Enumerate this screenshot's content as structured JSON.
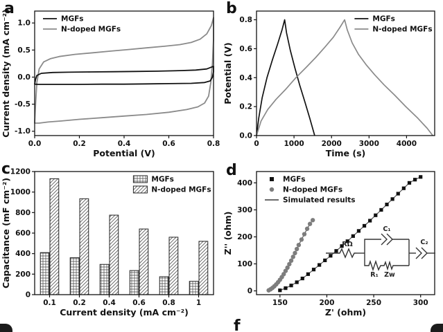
{
  "figure": {
    "panel_labels": [
      "a",
      "b",
      "c",
      "d"
    ],
    "cropped_label": "f",
    "colors": {
      "series_black": "#111111",
      "series_gray": "#8a8a8a",
      "sim_line": "#555555"
    }
  },
  "circuit": {
    "r_ohm": "RΩ",
    "c1": "C₁",
    "c2": "C₂",
    "r1": "R₁",
    "zw": "Zw"
  },
  "chart_data": [
    {
      "id": "a",
      "name": "cv-chart",
      "type": "line",
      "xlabel": "Potential (V)",
      "ylabel": "Current density (mA cm⁻²)",
      "xlim": [
        0,
        0.8
      ],
      "ylim": [
        -1.08,
        1.22
      ],
      "xticks": [
        0.0,
        0.2,
        0.4,
        0.6,
        0.8
      ],
      "xtick_labels": [
        "0.0",
        "0.2",
        "0.4",
        "0.6",
        "0.8"
      ],
      "yticks": [
        -1.0,
        -0.5,
        0.0,
        0.5,
        1.0
      ],
      "ytick_labels": [
        "-1.0",
        "-0.5",
        "0.0",
        "0.5",
        "1.0"
      ],
      "legend": {
        "position": "top-left",
        "items": [
          {
            "label": "MGFs",
            "swatch": "line",
            "color": "#111111"
          },
          {
            "label": "N-doped MGFs",
            "swatch": "line",
            "color": "#8a8a8a"
          }
        ]
      },
      "series": [
        {
          "name": "N-doped MGFs",
          "type": "line",
          "closed": true,
          "color": "#8a8a8a",
          "width": 1.8,
          "points": [
            [
              0,
              -0.85
            ],
            [
              0.004,
              -0.5
            ],
            [
              0.01,
              -0.1
            ],
            [
              0.02,
              0.15
            ],
            [
              0.04,
              0.28
            ],
            [
              0.07,
              0.34
            ],
            [
              0.11,
              0.38
            ],
            [
              0.18,
              0.42
            ],
            [
              0.26,
              0.45
            ],
            [
              0.34,
              0.48
            ],
            [
              0.42,
              0.51
            ],
            [
              0.5,
              0.54
            ],
            [
              0.58,
              0.57
            ],
            [
              0.65,
              0.6
            ],
            [
              0.7,
              0.64
            ],
            [
              0.74,
              0.7
            ],
            [
              0.77,
              0.8
            ],
            [
              0.79,
              0.95
            ],
            [
              0.8,
              1.1
            ],
            [
              0.8,
              0.7
            ],
            [
              0.795,
              0.25
            ],
            [
              0.788,
              -0.1
            ],
            [
              0.778,
              -0.35
            ],
            [
              0.76,
              -0.48
            ],
            [
              0.73,
              -0.55
            ],
            [
              0.68,
              -0.6
            ],
            [
              0.6,
              -0.65
            ],
            [
              0.5,
              -0.69
            ],
            [
              0.4,
              -0.72
            ],
            [
              0.3,
              -0.75
            ],
            [
              0.2,
              -0.78
            ],
            [
              0.12,
              -0.81
            ],
            [
              0.06,
              -0.83
            ],
            [
              0.02,
              -0.85
            ]
          ]
        },
        {
          "name": "MGFs",
          "type": "line",
          "closed": true,
          "color": "#111111",
          "width": 1.8,
          "points": [
            [
              0,
              -0.13
            ],
            [
              0.004,
              -0.04
            ],
            [
              0.01,
              0.03
            ],
            [
              0.03,
              0.07
            ],
            [
              0.08,
              0.085
            ],
            [
              0.15,
              0.09
            ],
            [
              0.25,
              0.095
            ],
            [
              0.35,
              0.1
            ],
            [
              0.45,
              0.105
            ],
            [
              0.55,
              0.11
            ],
            [
              0.65,
              0.12
            ],
            [
              0.72,
              0.13
            ],
            [
              0.77,
              0.15
            ],
            [
              0.8,
              0.2
            ],
            [
              0.8,
              0.1
            ],
            [
              0.795,
              0.0
            ],
            [
              0.785,
              -0.07
            ],
            [
              0.76,
              -0.1
            ],
            [
              0.7,
              -0.115
            ],
            [
              0.6,
              -0.12
            ],
            [
              0.5,
              -0.125
            ],
            [
              0.4,
              -0.13
            ],
            [
              0.3,
              -0.13
            ],
            [
              0.2,
              -0.135
            ],
            [
              0.12,
              -0.135
            ],
            [
              0.05,
              -0.135
            ],
            [
              0.015,
              -0.135
            ]
          ]
        }
      ]
    },
    {
      "id": "b",
      "name": "gcd-chart",
      "type": "line",
      "xlabel": "Time (s)",
      "ylabel": "Potential (V)",
      "xlim": [
        0,
        4750
      ],
      "ylim": [
        0,
        0.86
      ],
      "xticks": [
        0,
        1000,
        2000,
        3000,
        4000
      ],
      "xtick_labels": [
        "0",
        "1000",
        "2000",
        "3000",
        "4000"
      ],
      "yticks": [
        0.0,
        0.2,
        0.4,
        0.6,
        0.8
      ],
      "ytick_labels": [
        "0.0",
        "0.2",
        "0.4",
        "0.6",
        "0.8"
      ],
      "legend": {
        "position": "top-right",
        "items": [
          {
            "label": "MGFs",
            "swatch": "line",
            "color": "#111111"
          },
          {
            "label": "N-doped MGFs",
            "swatch": "line",
            "color": "#8a8a8a"
          }
        ]
      },
      "series": [
        {
          "name": "MGFs",
          "type": "line",
          "color": "#111111",
          "width": 1.7,
          "points": [
            [
              0,
              0
            ],
            [
              60,
              0.12
            ],
            [
              150,
              0.26
            ],
            [
              280,
              0.4
            ],
            [
              420,
              0.52
            ],
            [
              560,
              0.63
            ],
            [
              680,
              0.73
            ],
            [
              750,
              0.8
            ],
            [
              800,
              0.71
            ],
            [
              900,
              0.59
            ],
            [
              1020,
              0.47
            ],
            [
              1150,
              0.35
            ],
            [
              1280,
              0.24
            ],
            [
              1420,
              0.12
            ],
            [
              1550,
              0
            ]
          ]
        },
        {
          "name": "N-doped MGFs",
          "type": "line",
          "color": "#8a8a8a",
          "width": 1.7,
          "points": [
            [
              0,
              0
            ],
            [
              120,
              0.1
            ],
            [
              300,
              0.18
            ],
            [
              520,
              0.25
            ],
            [
              780,
              0.32
            ],
            [
              1050,
              0.4
            ],
            [
              1320,
              0.47
            ],
            [
              1580,
              0.54
            ],
            [
              1820,
              0.61
            ],
            [
              2050,
              0.68
            ],
            [
              2230,
              0.75
            ],
            [
              2350,
              0.8
            ],
            [
              2420,
              0.73
            ],
            [
              2550,
              0.64
            ],
            [
              2720,
              0.56
            ],
            [
              2920,
              0.49
            ],
            [
              3150,
              0.42
            ],
            [
              3400,
              0.35
            ],
            [
              3680,
              0.28
            ],
            [
              3980,
              0.2
            ],
            [
              4300,
              0.12
            ],
            [
              4550,
              0.05
            ],
            [
              4700,
              0
            ]
          ]
        }
      ]
    },
    {
      "id": "c",
      "name": "capacitance-bar-chart",
      "type": "bar",
      "xlabel": "Current density (mA cm⁻²)",
      "ylabel": "Capacitance (mF cm⁻²)",
      "categories": [
        "0.1",
        "0.2",
        "0.4",
        "0.6",
        "0.8",
        "1"
      ],
      "ylim": [
        0,
        1200
      ],
      "yticks": [
        0,
        200,
        400,
        600,
        800,
        1000,
        1200
      ],
      "ytick_labels": [
        "0",
        "200",
        "400",
        "600",
        "800",
        "1000",
        "1200"
      ],
      "legend": {
        "position": "top-right",
        "items": [
          {
            "label": "MGFs",
            "swatch": "rect",
            "hatch": "grid",
            "color": "#444444"
          },
          {
            "label": "N-doped MGFs",
            "swatch": "rect",
            "hatch": "diag",
            "color": "#666666"
          }
        ]
      },
      "series": [
        {
          "name": "MGFs",
          "hatch": "grid",
          "values": [
            410,
            360,
            295,
            235,
            175,
            130
          ]
        },
        {
          "name": "N-doped MGFs",
          "hatch": "diag",
          "values": [
            1130,
            935,
            775,
            640,
            560,
            520
          ]
        }
      ]
    },
    {
      "id": "d",
      "name": "nyquist-chart",
      "type": "scatter",
      "xlabel": "Z' (ohm)",
      "ylabel": "Z'' (ohm)",
      "xlim": [
        125,
        315
      ],
      "ylim": [
        -14,
        442
      ],
      "xticks": [
        150,
        200,
        250,
        300
      ],
      "xtick_labels": [
        "150",
        "200",
        "250",
        "300"
      ],
      "yticks": [
        0,
        100,
        200,
        300,
        400
      ],
      "ytick_labels": [
        "0",
        "100",
        "200",
        "300",
        "400"
      ],
      "legend": {
        "position": "top-left",
        "items": [
          {
            "label": "MGFs",
            "swatch": "square",
            "color": "#111111"
          },
          {
            "label": "N-doped MGFs",
            "swatch": "circle",
            "color": "#7d7d7d"
          },
          {
            "label": "Simulated results",
            "swatch": "line",
            "color": "#555555"
          }
        ]
      },
      "series": [
        {
          "name": "MGFs",
          "type": "scatter",
          "marker": "square",
          "color": "#111111",
          "sim_line": true,
          "points": [
            [
              150,
              2
            ],
            [
              156,
              10
            ],
            [
              162,
              20
            ],
            [
              168,
              32
            ],
            [
              174,
              46
            ],
            [
              180,
              62
            ],
            [
              186,
              79
            ],
            [
              192,
              96
            ],
            [
              198,
              113
            ],
            [
              204,
              130
            ],
            [
              210,
              148
            ],
            [
              216,
              166
            ],
            [
              222,
              184
            ],
            [
              228,
              203
            ],
            [
              234,
              222
            ],
            [
              240,
              241
            ],
            [
              246,
              260
            ],
            [
              252,
              280
            ],
            [
              258,
              300
            ],
            [
              264,
              320
            ],
            [
              270,
              340
            ],
            [
              276,
              360
            ],
            [
              282,
              380
            ],
            [
              288,
              400
            ],
            [
              294,
              412
            ],
            [
              300,
              422
            ]
          ]
        },
        {
          "name": "N-doped MGFs",
          "type": "scatter",
          "marker": "circle",
          "color": "#7d7d7d",
          "sim_line": true,
          "points": [
            [
              138,
              2
            ],
            [
              140,
              6
            ],
            [
              142,
              11
            ],
            [
              144,
              17
            ],
            [
              146,
              24
            ],
            [
              148,
              32
            ],
            [
              150,
              41
            ],
            [
              152,
              51
            ],
            [
              154,
              62
            ],
            [
              156,
              74
            ],
            [
              158,
              86
            ],
            [
              160,
              99
            ],
            [
              162,
              112
            ],
            [
              164,
              126
            ],
            [
              166,
              140
            ],
            [
              168,
              155
            ],
            [
              170,
              170
            ],
            [
              173,
              190
            ],
            [
              176,
              210
            ],
            [
              179,
              230
            ],
            [
              182,
              248
            ],
            [
              185,
              262
            ]
          ]
        }
      ]
    }
  ]
}
